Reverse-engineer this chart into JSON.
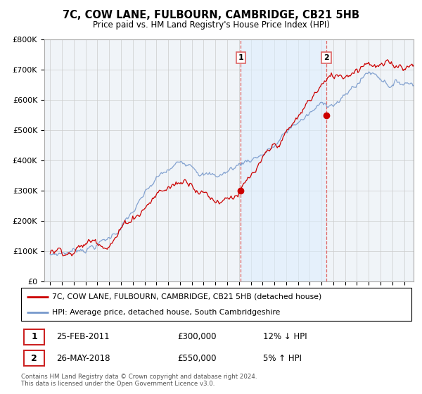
{
  "title": "7C, COW LANE, FULBOURN, CAMBRIDGE, CB21 5HB",
  "subtitle": "Price paid vs. HM Land Registry's House Price Index (HPI)",
  "ylim": [
    0,
    800000
  ],
  "transaction1": {
    "date_label": "25-FEB-2011",
    "price": 300000,
    "hpi_note": "12% ↓ HPI",
    "year": 2011.15
  },
  "transaction2": {
    "date_label": "26-MAY-2018",
    "price": 550000,
    "hpi_note": "5% ↑ HPI",
    "year": 2018.4
  },
  "legend_property": "7C, COW LANE, FULBOURN, CAMBRIDGE, CB21 5HB (detached house)",
  "legend_hpi": "HPI: Average price, detached house, South Cambridgeshire",
  "footer": "Contains HM Land Registry data © Crown copyright and database right 2024.\nThis data is licensed under the Open Government Licence v3.0.",
  "property_color": "#cc0000",
  "hpi_color": "#7799cc",
  "shade_color": "#ddeeff",
  "vline_color": "#dd6666",
  "background_color": "#ffffff",
  "chart_bg": "#f0f4f8",
  "grid_color": "#cccccc"
}
